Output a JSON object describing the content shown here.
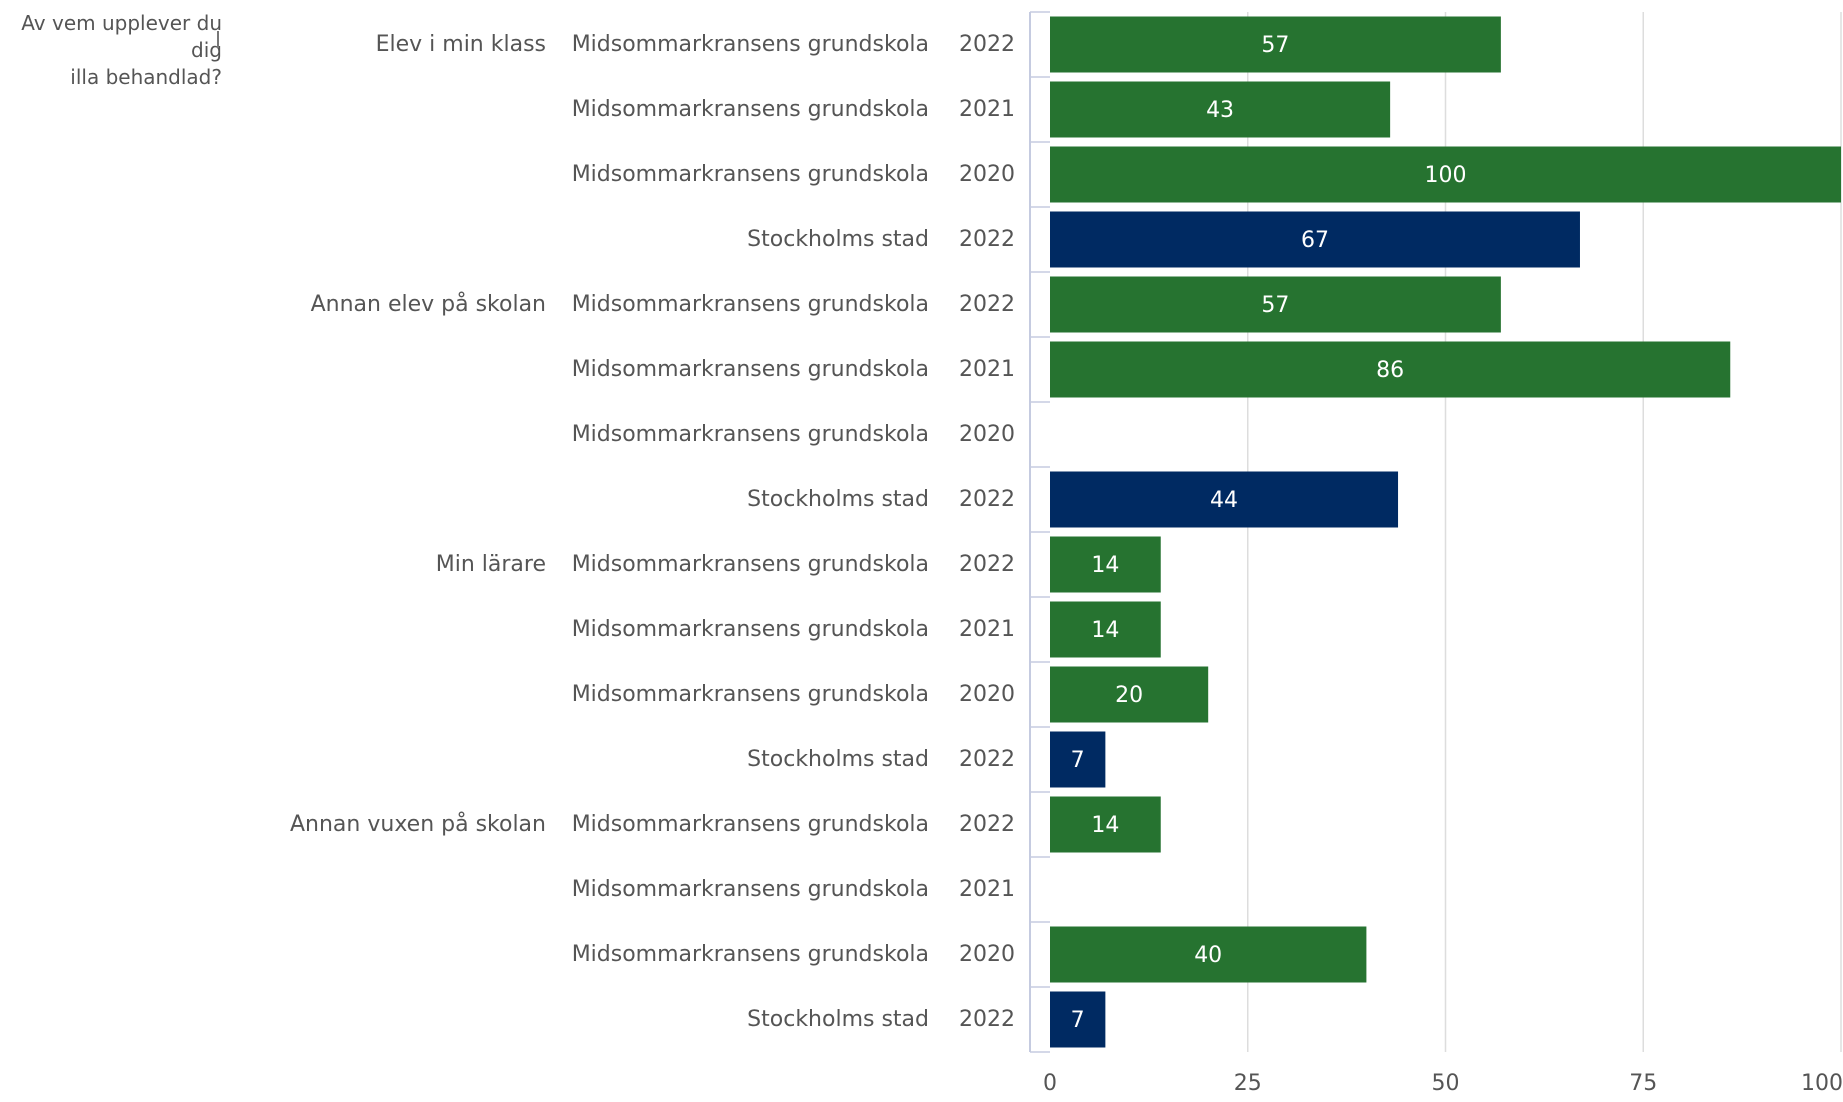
{
  "chart_data": {
    "type": "bar",
    "orientation": "horizontal",
    "title": "Av vem upplever du dig illa behandlad?",
    "title_lines": [
      "Av vem upplever du dig",
      "illa behandlad?"
    ],
    "groups": [
      "Elev i min klass",
      "Annan elev på skolan",
      "Min lärare",
      "Annan vuxen på skolan"
    ],
    "rows": [
      {
        "group": "Elev i min klass",
        "unit": "Midsommarkransens grundskola",
        "year": "2022",
        "value": 57,
        "label": "57",
        "color": "#267330"
      },
      {
        "group": "",
        "unit": "Midsommarkransens grundskola",
        "year": "2021",
        "value": 43,
        "label": "43",
        "color": "#267330"
      },
      {
        "group": "",
        "unit": "Midsommarkransens grundskola",
        "year": "2020",
        "value": 100,
        "label": "100",
        "color": "#267330"
      },
      {
        "group": "",
        "unit": "Stockholms stad",
        "year": "2022",
        "value": 67,
        "label": "67",
        "color": "#002a62"
      },
      {
        "group": "Annan elev på skolan",
        "unit": "Midsommarkransens grundskola",
        "year": "2022",
        "value": 57,
        "label": "57",
        "color": "#267330"
      },
      {
        "group": "",
        "unit": "Midsommarkransens grundskola",
        "year": "2021",
        "value": 86,
        "label": "86",
        "color": "#267330"
      },
      {
        "group": "",
        "unit": "Midsommarkransens grundskola",
        "year": "2020",
        "value": null,
        "label": "",
        "color": "#267330"
      },
      {
        "group": "",
        "unit": "Stockholms stad",
        "year": "2022",
        "value": 44,
        "label": "44",
        "color": "#002a62"
      },
      {
        "group": "Min lärare",
        "unit": "Midsommarkransens grundskola",
        "year": "2022",
        "value": 14,
        "label": "14",
        "color": "#267330"
      },
      {
        "group": "",
        "unit": "Midsommarkransens grundskola",
        "year": "2021",
        "value": 14,
        "label": "14",
        "color": "#267330"
      },
      {
        "group": "",
        "unit": "Midsommarkransens grundskola",
        "year": "2020",
        "value": 20,
        "label": "20",
        "color": "#267330"
      },
      {
        "group": "",
        "unit": "Stockholms stad",
        "year": "2022",
        "value": 7,
        "label": "7",
        "color": "#002a62"
      },
      {
        "group": "Annan vuxen på skolan",
        "unit": "Midsommarkransens grundskola",
        "year": "2022",
        "value": 14,
        "label": "14",
        "color": "#267330"
      },
      {
        "group": "",
        "unit": "Midsommarkransens grundskola",
        "year": "2021",
        "value": null,
        "label": "",
        "color": "#267330"
      },
      {
        "group": "",
        "unit": "Midsommarkransens grundskola",
        "year": "2020",
        "value": 40,
        "label": "40",
        "color": "#267330"
      },
      {
        "group": "",
        "unit": "Stockholms stad",
        "year": "2022",
        "value": 7,
        "label": "7",
        "color": "#002a62"
      }
    ],
    "x_ticks": [
      0,
      25,
      50,
      75,
      100
    ],
    "x_tick_labels": [
      "0",
      "25",
      "50",
      "75",
      "100"
    ],
    "xlim": [
      0,
      100
    ],
    "grid": true,
    "colors": {
      "school": "#267330",
      "city": "#002a62",
      "text": "#555555",
      "grid": "#dddddd",
      "axis": "#c5cbe0"
    }
  }
}
